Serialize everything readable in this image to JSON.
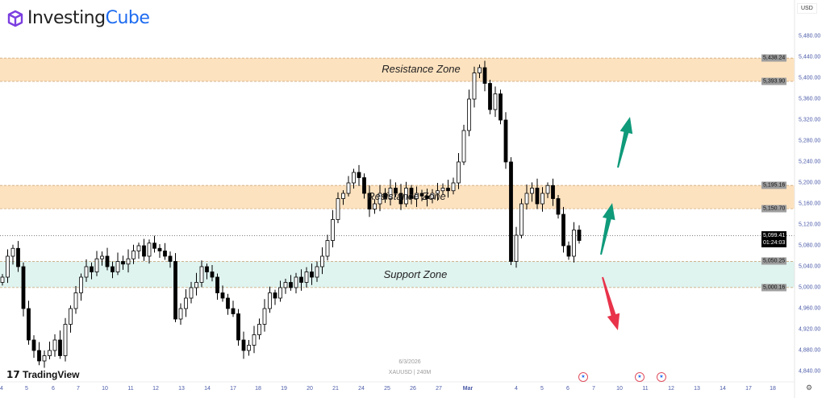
{
  "brand": {
    "name_a": "Investing",
    "name_b": "Cube",
    "colors": {
      "accent": "#1e6cf0",
      "logo": "#7b3fe0"
    }
  },
  "currency": "USD",
  "symbol_info": {
    "date": "6/3/2026",
    "symbol": "XAUUSD | 240M"
  },
  "tradingview_label": "TradingView",
  "zones": [
    {
      "label": "Resistance Zone",
      "top": 5438.24,
      "bottom": 5393.9,
      "color": "#fde2bf",
      "top_label": "5,438.24",
      "bottom_label": "5,393.90"
    },
    {
      "label": "Resistance Zone",
      "top": 5195.16,
      "bottom": 5150.7,
      "color": "#fde2bf",
      "top_label": "5,195.16",
      "bottom_label": "5,150.70"
    },
    {
      "label": "Support Zone",
      "top": 5050.25,
      "bottom": 5000.16,
      "color": "#dff3ef",
      "top_label": "5,050.25",
      "bottom_label": "5,000.16"
    }
  ],
  "current_price": {
    "value": 5099.41,
    "label": "5,099.41",
    "countdown": "01:24:03"
  },
  "y_axis": {
    "labels": [
      "5,480.00",
      "5,440.00",
      "5,400.00",
      "5,360.00",
      "5,320.00",
      "5,280.00",
      "5,240.00",
      "5,200.00",
      "5,160.00",
      "5,120.00",
      "5,080.00",
      "5,040.00",
      "5,000.00",
      "4,960.00",
      "4,920.00",
      "4,880.00",
      "4,840.00"
    ],
    "range": [
      4840,
      5480
    ]
  },
  "x_axis": {
    "labels": [
      "4",
      "5",
      "6",
      "7",
      "10",
      "11",
      "12",
      "13",
      "14",
      "17",
      "18",
      "19",
      "20",
      "21",
      "24",
      "25",
      "26",
      "27",
      "Mar",
      "4",
      "5",
      "6",
      "7",
      "10",
      "11",
      "12",
      "13",
      "14",
      "17",
      "18"
    ]
  },
  "arrows": [
    {
      "direction": "up",
      "color": "#0f9a7a"
    },
    {
      "direction": "up",
      "color": "#0f9a7a"
    },
    {
      "direction": "down",
      "color": "#e8334a"
    }
  ],
  "event_flags": [
    "us-flag-icon",
    "us-flag-icon",
    "us-flag-icon"
  ],
  "chart_data": {
    "type": "candlestick",
    "up_color": "#ffffff",
    "down_color": "#000000",
    "closes": [
      5020,
      5060,
      5075,
      5040,
      4960,
      4900,
      4880,
      4860,
      4870,
      4880,
      4900,
      4870,
      4930,
      4960,
      4990,
      5020,
      5040,
      5030,
      5055,
      5060,
      5040,
      5030,
      5050,
      5045,
      5055,
      5070,
      5080,
      5060,
      5085,
      5075,
      5070,
      5060,
      5050,
      4940,
      4960,
      4980,
      5000,
      5010,
      5040,
      5030,
      5020,
      4990,
      4980,
      4960,
      4950,
      4900,
      4880,
      4890,
      4910,
      4930,
      4960,
      4990,
      4980,
      5000,
      5010,
      5000,
      5020,
      5010,
      5030,
      5020,
      5040,
      5060,
      5090,
      5130,
      5170,
      5180,
      5200,
      5220,
      5210,
      5180,
      5150,
      5160,
      5180,
      5170,
      5190,
      5180,
      5160,
      5190,
      5170,
      5180,
      5175,
      5170,
      5180,
      5185,
      5190,
      5185,
      5200,
      5240,
      5300,
      5360,
      5410,
      5420,
      5390,
      5340,
      5370,
      5320,
      5240,
      5050,
      5100,
      5160,
      5180,
      5190,
      5160,
      5180,
      5195,
      5170,
      5140,
      5080,
      5060,
      5110,
      5090
    ]
  }
}
